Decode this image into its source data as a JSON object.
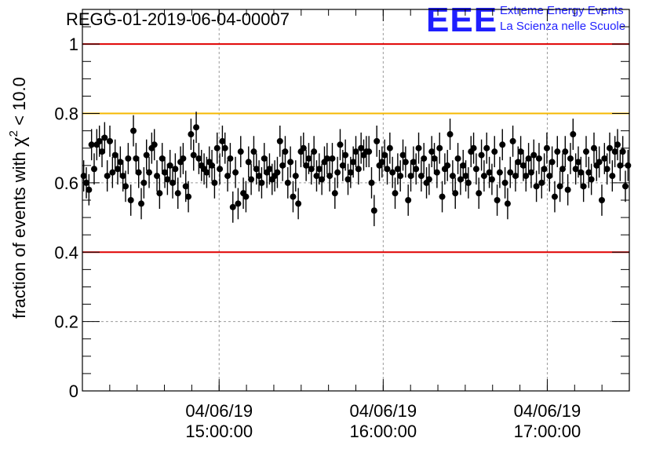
{
  "chart_data": {
    "type": "scatter",
    "title": "REGG-01-2019-06-04-00007",
    "ylabel": "fraction of events with χ² < 10.0",
    "ylabel_main": "fraction of events with ",
    "ylabel_symbol": "χ",
    "ylabel_sup": "2",
    "ylabel_tail": " < 10.0",
    "xlabel": "",
    "ylim": [
      0,
      1.1
    ],
    "xlim": [
      "2019-06-04T14:10:00",
      "2019-06-04T17:30:00"
    ],
    "x_ticks": [
      {
        "x": "2019-06-04T15:00:00",
        "date": "04/06/19",
        "time": "15:00:00"
      },
      {
        "x": "2019-06-04T16:00:00",
        "date": "04/06/19",
        "time": "16:00:00"
      },
      {
        "x": "2019-06-04T17:00:00",
        "date": "04/06/19",
        "time": "17:00:00"
      }
    ],
    "y_ticks": [
      {
        "y": 0,
        "label": "0"
      },
      {
        "y": 0.2,
        "label": "0.2"
      },
      {
        "y": 0.4,
        "label": "0.4"
      },
      {
        "y": 0.6,
        "label": "0.6"
      },
      {
        "y": 0.8,
        "label": "0.8"
      },
      {
        "y": 1,
        "label": "1"
      }
    ],
    "grid": true,
    "reference_lines": [
      {
        "y": 1.0,
        "color": "#e00000"
      },
      {
        "y": 0.8,
        "color": "#f5b800"
      },
      {
        "y": 0.4,
        "color": "#e00000"
      }
    ],
    "marker_color": "#000000",
    "points": [
      0.62,
      0.6,
      0.58,
      0.71,
      0.64,
      0.71,
      0.72,
      0.69,
      0.73,
      0.62,
      0.72,
      0.63,
      0.68,
      0.64,
      0.66,
      0.62,
      0.59,
      0.67,
      0.55,
      0.75,
      0.67,
      0.63,
      0.54,
      0.6,
      0.68,
      0.63,
      0.7,
      0.71,
      0.62,
      0.57,
      0.67,
      0.63,
      0.61,
      0.65,
      0.6,
      0.64,
      0.57,
      0.66,
      0.67,
      0.59,
      0.56,
      0.74,
      0.68,
      0.76,
      0.67,
      0.65,
      0.64,
      0.63,
      0.66,
      0.65,
      0.6,
      0.7,
      0.64,
      0.72,
      0.7,
      0.62,
      0.67,
      0.53,
      0.63,
      0.54,
      0.69,
      0.57,
      0.56,
      0.66,
      0.61,
      0.69,
      0.64,
      0.62,
      0.6,
      0.67,
      0.63,
      0.64,
      0.61,
      0.62,
      0.63,
      0.72,
      0.65,
      0.69,
      0.6,
      0.66,
      0.56,
      0.62,
      0.54,
      0.69,
      0.7,
      0.65,
      0.67,
      0.64,
      0.69,
      0.62,
      0.64,
      0.61,
      0.66,
      0.67,
      0.62,
      0.67,
      0.57,
      0.63,
      0.71,
      0.65,
      0.68,
      0.61,
      0.63,
      0.66,
      0.69,
      0.64,
      0.7,
      0.68,
      0.69,
      0.69,
      0.6,
      0.52,
      0.72,
      0.65,
      0.66,
      0.68,
      0.64,
      0.7,
      0.63,
      0.57,
      0.64,
      0.62,
      0.68,
      0.66,
      0.55,
      0.62,
      0.66,
      0.64,
      0.7,
      0.62,
      0.67,
      0.6,
      0.61,
      0.69,
      0.67,
      0.63,
      0.7,
      0.56,
      0.64,
      0.65,
      0.74,
      0.62,
      0.57,
      0.67,
      0.61,
      0.65,
      0.62,
      0.6,
      0.69,
      0.7,
      0.64,
      0.57,
      0.68,
      0.62,
      0.7,
      0.63,
      0.61,
      0.69,
      0.55,
      0.63,
      0.71,
      0.6,
      0.54,
      0.63,
      0.72,
      0.62,
      0.66,
      0.69,
      0.65,
      0.62,
      0.67,
      0.63,
      0.68,
      0.59,
      0.67,
      0.6,
      0.64,
      0.7,
      0.62,
      0.66,
      0.56,
      0.69,
      0.59,
      0.64,
      0.69,
      0.58,
      0.67,
      0.74,
      0.64,
      0.66,
      0.63,
      0.59,
      0.69,
      0.63,
      0.61,
      0.7,
      0.65,
      0.66,
      0.55,
      0.67,
      0.64,
      0.7,
      0.62,
      0.69,
      0.71,
      0.65,
      0.69,
      0.59,
      0.65
    ],
    "error_bar": 0.045
  },
  "logo": {
    "letters": "EEE",
    "line1": "Extreme Energy Events",
    "line2": "La Scienza nelle Scuole"
  }
}
